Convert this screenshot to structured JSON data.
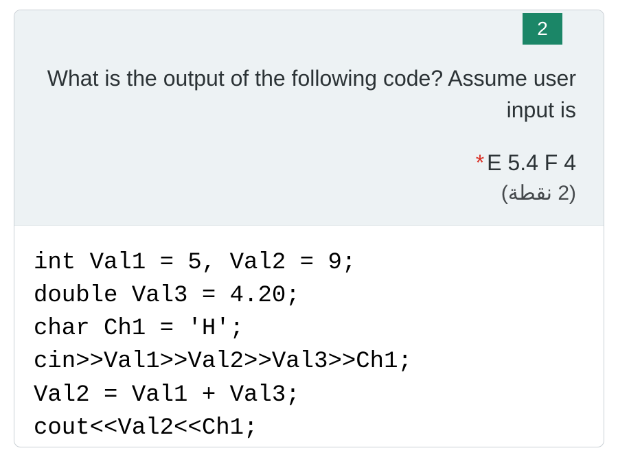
{
  "question_number": "2",
  "question_text": "What is the output of the following code? Assume user input is",
  "input_hint": "E 5.4 F 4",
  "points_arabic": "(2 نقطة)",
  "code_lines": [
    "int Val1 = 5, Val2 = 9;",
    "double Val3 = 4.20;",
    "char Ch1 = 'H';",
    "cin>>Val1>>Val2>>Val3>>Ch1;",
    "Val2 = Val1 + Val3;",
    "cout<<Val2<<Ch1;"
  ],
  "colors": {
    "badge_bg": "#1b8667",
    "header_bg": "#edf2f4",
    "card_border": "#C9CFD4",
    "text": "#2c3336",
    "star": "#d93025"
  },
  "font_sizes": {
    "badge": 28,
    "question": 32,
    "code": 34,
    "arabic": 30
  }
}
